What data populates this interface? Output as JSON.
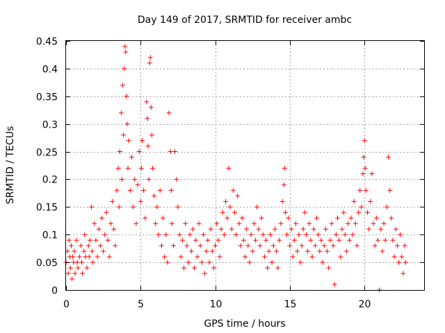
{
  "chart_data": {
    "type": "scatter",
    "title": "Day 149 of 2017, SRMTID for receiver ambc",
    "xlabel": "GPS time / hours",
    "ylabel": "SRMTID / TECUs",
    "xlim": [
      0,
      24
    ],
    "ylim": [
      0,
      0.45
    ],
    "xticks": [
      0,
      5,
      10,
      15,
      20
    ],
    "xtick_labels": [
      "0",
      "5",
      "10",
      "15",
      "20"
    ],
    "yticks": [
      0,
      0.05,
      0.1,
      0.15,
      0.2,
      0.25,
      0.3,
      0.35,
      0.4,
      0.45
    ],
    "ytick_labels": [
      "0",
      "0.05",
      "0.1",
      "0.15",
      "0.2",
      "0.25",
      "0.3",
      "0.35",
      "0.4",
      "0.45"
    ],
    "grid": true,
    "marker": "+",
    "color": "#ff0000",
    "series": [
      {
        "name": "SRMTID",
        "points": [
          [
            0.0,
            0.05
          ],
          [
            0.1,
            0.07
          ],
          [
            0.15,
            0.03
          ],
          [
            0.2,
            0.09
          ],
          [
            0.25,
            0.06
          ],
          [
            0.3,
            0.04
          ],
          [
            0.35,
            0.08
          ],
          [
            0.4,
            0.02
          ],
          [
            0.45,
            0.06
          ],
          [
            0.5,
            0.05
          ],
          [
            0.55,
            0.07
          ],
          [
            0.6,
            0.03
          ],
          [
            0.7,
            0.09
          ],
          [
            0.75,
            0.05
          ],
          [
            0.8,
            0.04
          ],
          [
            0.9,
            0.06
          ],
          [
            1.0,
            0.08
          ],
          [
            1.05,
            0.05
          ],
          [
            1.1,
            0.03
          ],
          [
            1.2,
            0.07
          ],
          [
            1.25,
            0.1
          ],
          [
            1.3,
            0.06
          ],
          [
            1.4,
            0.04
          ],
          [
            1.5,
            0.08
          ],
          [
            1.55,
            0.06
          ],
          [
            1.6,
            0.09
          ],
          [
            1.7,
            0.15
          ],
          [
            1.75,
            0.07
          ],
          [
            1.8,
            0.05
          ],
          [
            1.9,
            0.12
          ],
          [
            2.0,
            0.09
          ],
          [
            2.1,
            0.06
          ],
          [
            2.2,
            0.11
          ],
          [
            2.3,
            0.08
          ],
          [
            2.4,
            0.13
          ],
          [
            2.5,
            0.07
          ],
          [
            2.6,
            0.1
          ],
          [
            2.7,
            0.14
          ],
          [
            2.8,
            0.09
          ],
          [
            2.9,
            0.06
          ],
          [
            3.0,
            0.12
          ],
          [
            3.1,
            0.16
          ],
          [
            3.2,
            0.11
          ],
          [
            3.3,
            0.08
          ],
          [
            3.4,
            0.18
          ],
          [
            3.5,
            0.22
          ],
          [
            3.55,
            0.15
          ],
          [
            3.6,
            0.25
          ],
          [
            3.7,
            0.32
          ],
          [
            3.75,
            0.2
          ],
          [
            3.8,
            0.37
          ],
          [
            3.85,
            0.28
          ],
          [
            3.9,
            0.4
          ],
          [
            3.95,
            0.44
          ],
          [
            4.0,
            0.43
          ],
          [
            4.05,
            0.35
          ],
          [
            4.1,
            0.3
          ],
          [
            4.15,
            0.22
          ],
          [
            4.2,
            0.27
          ],
          [
            4.3,
            0.18
          ],
          [
            4.4,
            0.24
          ],
          [
            4.5,
            0.15
          ],
          [
            4.6,
            0.2
          ],
          [
            4.7,
            0.12
          ],
          [
            4.8,
            0.19
          ],
          [
            4.9,
            0.25
          ],
          [
            5.0,
            0.16
          ],
          [
            5.05,
            0.22
          ],
          [
            5.1,
            0.27
          ],
          [
            5.2,
            0.18
          ],
          [
            5.3,
            0.13
          ],
          [
            5.4,
            0.34
          ],
          [
            5.45,
            0.31
          ],
          [
            5.5,
            0.26
          ],
          [
            5.55,
            0.2
          ],
          [
            5.6,
            0.41
          ],
          [
            5.65,
            0.42
          ],
          [
            5.7,
            0.33
          ],
          [
            5.75,
            0.28
          ],
          [
            5.8,
            0.22
          ],
          [
            5.9,
            0.17
          ],
          [
            6.0,
            0.12
          ],
          [
            6.1,
            0.15
          ],
          [
            6.2,
            0.1
          ],
          [
            6.3,
            0.18
          ],
          [
            6.4,
            0.08
          ],
          [
            6.5,
            0.13
          ],
          [
            6.6,
            0.06
          ],
          [
            6.7,
            0.1
          ],
          [
            6.8,
            0.05
          ],
          [
            6.9,
            0.32
          ],
          [
            7.0,
            0.25
          ],
          [
            7.05,
            0.18
          ],
          [
            7.1,
            0.12
          ],
          [
            7.2,
            0.08
          ],
          [
            7.3,
            0.25
          ],
          [
            7.4,
            0.2
          ],
          [
            7.5,
            0.15
          ],
          [
            7.6,
            0.1
          ],
          [
            7.7,
            0.06
          ],
          [
            7.8,
            0.09
          ],
          [
            7.9,
            0.04
          ],
          [
            8.0,
            0.12
          ],
          [
            8.1,
            0.08
          ],
          [
            8.2,
            0.05
          ],
          [
            8.3,
            0.1
          ],
          [
            8.4,
            0.07
          ],
          [
            8.5,
            0.11
          ],
          [
            8.6,
            0.04
          ],
          [
            8.7,
            0.09
          ],
          [
            8.8,
            0.06
          ],
          [
            8.9,
            0.12
          ],
          [
            9.0,
            0.08
          ],
          [
            9.1,
            0.05
          ],
          [
            9.2,
            0.1
          ],
          [
            9.3,
            0.03
          ],
          [
            9.4,
            0.07
          ],
          [
            9.5,
            0.09
          ],
          [
            9.6,
            0.05
          ],
          [
            9.7,
            0.11
          ],
          [
            9.8,
            0.07
          ],
          [
            9.9,
            0.04
          ],
          [
            10.0,
            0.08
          ],
          [
            10.1,
            0.12
          ],
          [
            10.2,
            0.09
          ],
          [
            10.3,
            0.06
          ],
          [
            10.4,
            0.11
          ],
          [
            10.5,
            0.14
          ],
          [
            10.6,
            0.1
          ],
          [
            10.7,
            0.16
          ],
          [
            10.8,
            0.13
          ],
          [
            10.9,
            0.22
          ],
          [
            11.0,
            0.15
          ],
          [
            11.1,
            0.11
          ],
          [
            11.2,
            0.18
          ],
          [
            11.3,
            0.14
          ],
          [
            11.4,
            0.1
          ],
          [
            11.5,
            0.17
          ],
          [
            11.6,
            0.12
          ],
          [
            11.7,
            0.08
          ],
          [
            11.8,
            0.13
          ],
          [
            11.9,
            0.09
          ],
          [
            12.0,
            0.06
          ],
          [
            12.1,
            0.11
          ],
          [
            12.2,
            0.08
          ],
          [
            12.3,
            0.05
          ],
          [
            12.4,
            0.1
          ],
          [
            12.5,
            0.07
          ],
          [
            12.6,
            0.12
          ],
          [
            12.7,
            0.09
          ],
          [
            12.8,
            0.15
          ],
          [
            12.9,
            0.11
          ],
          [
            13.0,
            0.08
          ],
          [
            13.1,
            0.13
          ],
          [
            13.2,
            0.1
          ],
          [
            13.3,
            0.06
          ],
          [
            13.4,
            0.09
          ],
          [
            13.5,
            0.04
          ],
          [
            13.6,
            0.07
          ],
          [
            13.7,
            0.1
          ],
          [
            13.8,
            0.05
          ],
          [
            13.9,
            0.08
          ],
          [
            14.0,
            0.11
          ],
          [
            14.1,
            0.07
          ],
          [
            14.2,
            0.04
          ],
          [
            14.3,
            0.09
          ],
          [
            14.4,
            0.12
          ],
          [
            14.5,
            0.16
          ],
          [
            14.6,
            0.19
          ],
          [
            14.65,
            0.22
          ],
          [
            14.7,
            0.14
          ],
          [
            14.8,
            0.1
          ],
          [
            14.9,
            0.13
          ],
          [
            15.0,
            0.08
          ],
          [
            15.1,
            0.11
          ],
          [
            15.2,
            0.06
          ],
          [
            15.3,
            0.09
          ],
          [
            15.4,
            0.12
          ],
          [
            15.5,
            0.07
          ],
          [
            15.6,
            0.1
          ],
          [
            15.7,
            0.05
          ],
          [
            15.8,
            0.08
          ],
          [
            15.9,
            0.11
          ],
          [
            16.0,
            0.14
          ],
          [
            16.1,
            0.1
          ],
          [
            16.2,
            0.07
          ],
          [
            16.3,
            0.12
          ],
          [
            16.4,
            0.09
          ],
          [
            16.5,
            0.06
          ],
          [
            16.6,
            0.11
          ],
          [
            16.7,
            0.08
          ],
          [
            16.8,
            0.13
          ],
          [
            16.9,
            0.1
          ],
          [
            17.0,
            0.07
          ],
          [
            17.1,
            0.09
          ],
          [
            17.2,
            0.05
          ],
          [
            17.3,
            0.08
          ],
          [
            17.4,
            0.11
          ],
          [
            17.5,
            0.07
          ],
          [
            17.6,
            0.04
          ],
          [
            17.7,
            0.09
          ],
          [
            17.8,
            0.12
          ],
          [
            17.9,
            0.08
          ],
          [
            18.0,
            0.01
          ],
          [
            18.1,
            0.1
          ],
          [
            18.2,
            0.13
          ],
          [
            18.3,
            0.09
          ],
          [
            18.4,
            0.06
          ],
          [
            18.5,
            0.11
          ],
          [
            18.6,
            0.14
          ],
          [
            18.7,
            0.1
          ],
          [
            18.8,
            0.07
          ],
          [
            18.9,
            0.12
          ],
          [
            19.0,
            0.09
          ],
          [
            19.1,
            0.13
          ],
          [
            19.2,
            0.1
          ],
          [
            19.3,
            0.16
          ],
          [
            19.4,
            0.12
          ],
          [
            19.5,
            0.08
          ],
          [
            19.6,
            0.14
          ],
          [
            19.7,
            0.18
          ],
          [
            19.8,
            0.15
          ],
          [
            19.9,
            0.21
          ],
          [
            19.95,
            0.24
          ],
          [
            20.0,
            0.27
          ],
          [
            20.05,
            0.22
          ],
          [
            20.1,
            0.18
          ],
          [
            20.2,
            0.14
          ],
          [
            20.3,
            0.11
          ],
          [
            20.4,
            0.16
          ],
          [
            20.5,
            0.21
          ],
          [
            20.6,
            0.12
          ],
          [
            20.7,
            0.08
          ],
          [
            20.8,
            0.13
          ],
          [
            20.9,
            0.09
          ],
          [
            21.0,
            0.0
          ],
          [
            21.1,
            0.11
          ],
          [
            21.2,
            0.07
          ],
          [
            21.3,
            0.12
          ],
          [
            21.4,
            0.09
          ],
          [
            21.5,
            0.15
          ],
          [
            21.6,
            0.24
          ],
          [
            21.7,
            0.18
          ],
          [
            21.8,
            0.13
          ],
          [
            21.9,
            0.09
          ],
          [
            22.0,
            0.06
          ],
          [
            22.1,
            0.11
          ],
          [
            22.2,
            0.08
          ],
          [
            22.3,
            0.05
          ],
          [
            22.4,
            0.1
          ],
          [
            22.5,
            0.06
          ],
          [
            22.6,
            0.03
          ],
          [
            22.7,
            0.08
          ],
          [
            22.75,
            0.05
          ]
        ]
      }
    ]
  }
}
